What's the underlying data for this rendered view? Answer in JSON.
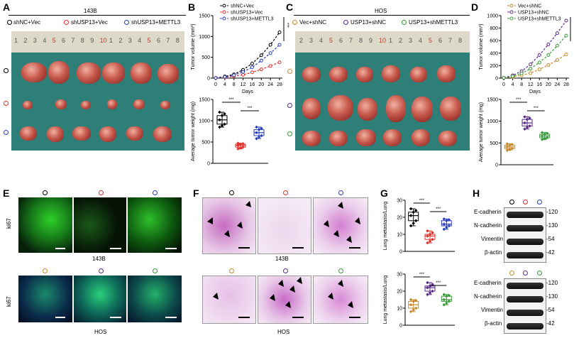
{
  "panels": {
    "A": "A",
    "B": "B",
    "C": "C",
    "D": "D",
    "E": "E",
    "F": "F",
    "G": "G",
    "H": "H"
  },
  "panelA": {
    "title": "143B",
    "legend": [
      "shNC+Vec",
      "shUSP13+Vec",
      "shUSP13+METTL3"
    ],
    "ruler": [
      "1",
      "2",
      "3",
      "4",
      "5",
      "6",
      "7",
      "8",
      "9",
      "10",
      "1",
      "2",
      "3",
      "4",
      "5",
      "6",
      "7",
      "8"
    ]
  },
  "panelC": {
    "title": "HOS",
    "legend": [
      "Vec+shNC",
      "USP13+shNC",
      "USP13+shMETTL3"
    ],
    "ruler": [
      "2",
      "3",
      "4",
      "5",
      "6",
      "7",
      "8",
      "9",
      "10",
      "1",
      "2",
      "3",
      "4",
      "5",
      "6",
      "7",
      "8"
    ]
  },
  "colors": {
    "black": "#000000",
    "red": "#e0302a",
    "blue": "#2a3fbf",
    "orange": "#c98a2e",
    "purple": "#5a2a8a",
    "green": "#3a9a3a"
  },
  "panelE": {
    "ylabel": "ki67",
    "caption_top": "143B",
    "caption_bottom": "HOS"
  },
  "panelF": {
    "caption_top": "143B",
    "caption_bottom": "HOS"
  },
  "panelH": {
    "proteins": [
      "E-cadherin",
      "N-cadherin",
      "Vimentin",
      "β-actin"
    ],
    "kda": [
      "-120",
      "-130",
      "-54",
      "-42"
    ]
  },
  "sig": "***",
  "chart_data": [
    {
      "id": "B-top",
      "type": "line",
      "title": "",
      "xlabel": "Days",
      "ylabel": "Tumor volume (mm³)",
      "x": [
        0,
        4,
        8,
        12,
        16,
        20,
        24,
        28
      ],
      "ylim": [
        0,
        1500
      ],
      "yticks": [
        0,
        500,
        1000,
        1500
      ],
      "series": [
        {
          "name": "shNC+Vec",
          "color": "#000000",
          "values": [
            5,
            40,
            90,
            200,
            350,
            550,
            800,
            1100
          ]
        },
        {
          "name": "shUSP13+Vec",
          "color": "#e0302a",
          "values": [
            5,
            20,
            45,
            80,
            140,
            210,
            290,
            380
          ]
        },
        {
          "name": "shUSP13+METTL3",
          "color": "#2a3fbf",
          "values": [
            5,
            30,
            70,
            150,
            260,
            420,
            600,
            800
          ]
        }
      ],
      "legend": [
        "shNC+Vec",
        "shUSP13+Vec",
        "shUSP13+METTL3"
      ],
      "sig": "***"
    },
    {
      "id": "B-bottom",
      "type": "box",
      "ylabel": "Average tumor weight (mg)",
      "ylim": [
        0,
        1500
      ],
      "yticks": [
        0,
        500,
        1000,
        1500
      ],
      "groups": [
        {
          "name": "shNC+Vec",
          "color": "#000000",
          "median": 1020,
          "q1": 920,
          "q3": 1120,
          "min": 850,
          "max": 1200
        },
        {
          "name": "shUSP13+Vec",
          "color": "#e0302a",
          "median": 420,
          "q1": 380,
          "q3": 450,
          "min": 340,
          "max": 470
        },
        {
          "name": "shUSP13+METTL3",
          "color": "#2a3fbf",
          "median": 720,
          "q1": 650,
          "q3": 790,
          "min": 580,
          "max": 850
        }
      ],
      "sig": "***"
    },
    {
      "id": "D-top",
      "type": "line",
      "xlabel": "Days",
      "ylabel": "Tumor volume (mm³)",
      "x": [
        0,
        4,
        8,
        12,
        16,
        20,
        24,
        28
      ],
      "ylim": [
        0,
        1000
      ],
      "yticks": [
        0,
        200,
        400,
        600,
        800,
        1000
      ],
      "series": [
        {
          "name": "Vec+shNC",
          "color": "#c98a2e",
          "values": [
            5,
            20,
            45,
            80,
            140,
            210,
            290,
            380
          ]
        },
        {
          "name": "USP13+shNC",
          "color": "#5a2a8a",
          "values": [
            5,
            45,
            110,
            220,
            370,
            540,
            720,
            920
          ]
        },
        {
          "name": "USP13+shMETTL3",
          "color": "#3a9a3a",
          "values": [
            5,
            30,
            75,
            150,
            250,
            370,
            520,
            680
          ]
        }
      ],
      "legend": [
        "Vec+shNC",
        "USP13+shNC",
        "USP13+shMETTL3"
      ],
      "sig": "***"
    },
    {
      "id": "D-bottom",
      "type": "box",
      "ylabel": "Average tumor weight (mg)",
      "ylim": [
        0,
        1500
      ],
      "yticks": [
        0,
        500,
        1000,
        1500
      ],
      "groups": [
        {
          "name": "Vec+shNC",
          "color": "#c98a2e",
          "median": 410,
          "q1": 370,
          "q3": 450,
          "min": 330,
          "max": 480
        },
        {
          "name": "USP13+shNC",
          "color": "#5a2a8a",
          "median": 960,
          "q1": 890,
          "q3": 1040,
          "min": 820,
          "max": 1100
        },
        {
          "name": "USP13+shMETTL3",
          "color": "#3a9a3a",
          "median": 660,
          "q1": 620,
          "q3": 700,
          "min": 580,
          "max": 740
        }
      ],
      "sig": "***"
    },
    {
      "id": "G-top",
      "type": "box",
      "ylabel": "Lung metastasis/Lung",
      "ylim": [
        0,
        30
      ],
      "yticks": [
        0,
        10,
        20,
        30
      ],
      "groups": [
        {
          "name": "shNC+Vec",
          "color": "#000000",
          "median": 21,
          "q1": 18,
          "q3": 23,
          "min": 15,
          "max": 25
        },
        {
          "name": "shUSP13+Vec",
          "color": "#e0302a",
          "median": 9,
          "q1": 7,
          "q3": 10,
          "min": 5,
          "max": 12
        },
        {
          "name": "shUSP13+METTL3",
          "color": "#2a3fbf",
          "median": 16,
          "q1": 15,
          "q3": 18,
          "min": 13,
          "max": 19
        }
      ],
      "sig": "***"
    },
    {
      "id": "G-bottom",
      "type": "box",
      "ylabel": "Lung metastasis/Lung",
      "ylim": [
        0,
        30
      ],
      "yticks": [
        0,
        10,
        20,
        30
      ],
      "groups": [
        {
          "name": "Vec+shNC",
          "color": "#c98a2e",
          "median": 12,
          "q1": 10,
          "q3": 14,
          "min": 8,
          "max": 15
        },
        {
          "name": "USP13+shNC",
          "color": "#5a2a8a",
          "median": 22,
          "q1": 20,
          "q3": 23,
          "min": 18,
          "max": 25
        },
        {
          "name": "USP13+shMETTL3",
          "color": "#3a9a3a",
          "median": 15,
          "q1": 14,
          "q3": 17,
          "min": 12,
          "max": 18
        }
      ],
      "sig": "***"
    }
  ]
}
